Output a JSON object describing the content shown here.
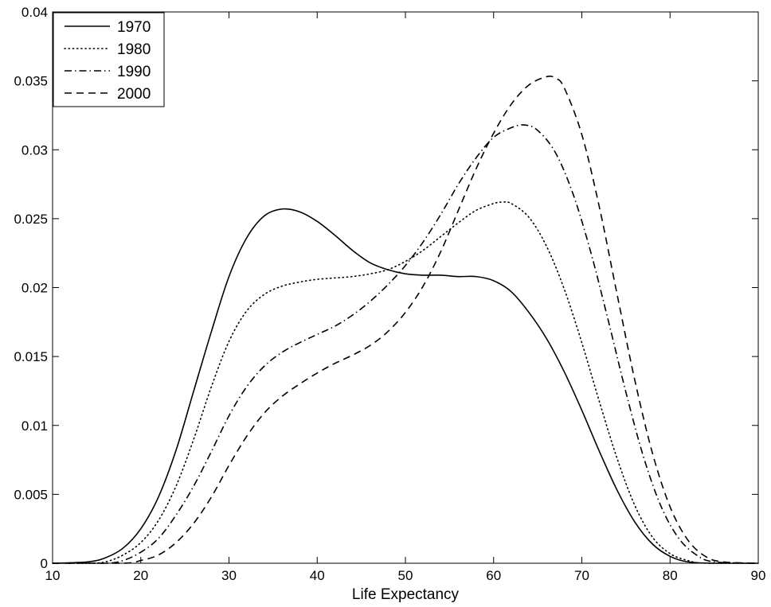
{
  "chart_data": {
    "type": "line",
    "title": "",
    "xlabel": "Life Expectancy",
    "ylabel": "",
    "xlim": [
      10,
      90
    ],
    "ylim": [
      0,
      0.04
    ],
    "x_ticks": [
      "10",
      "20",
      "30",
      "40",
      "50",
      "60",
      "70",
      "80",
      "90"
    ],
    "y_ticks": [
      "0",
      "0.005",
      "0.01",
      "0.015",
      "0.02",
      "0.025",
      "0.03",
      "0.035",
      "0.04"
    ],
    "grid": false,
    "legend_position": "top-left",
    "series": [
      {
        "name": "1970",
        "style": "solid",
        "x": [
          10,
          14,
          16,
          18,
          20,
          22,
          24,
          26,
          28,
          30,
          32,
          34,
          36,
          38,
          40,
          42,
          44,
          46,
          48,
          50,
          52,
          54,
          56,
          58,
          60,
          62,
          64,
          66,
          68,
          70,
          72,
          74,
          76,
          78,
          80,
          82,
          85,
          90
        ],
        "y": [
          0,
          0.0001,
          0.0004,
          0.0011,
          0.0025,
          0.0048,
          0.0082,
          0.0125,
          0.0168,
          0.0208,
          0.0236,
          0.0252,
          0.0257,
          0.0255,
          0.0248,
          0.0238,
          0.0227,
          0.0218,
          0.0213,
          0.021,
          0.0209,
          0.0209,
          0.0208,
          0.0208,
          0.0205,
          0.0197,
          0.0182,
          0.0163,
          0.0139,
          0.0111,
          0.0081,
          0.0053,
          0.003,
          0.0014,
          0.0005,
          0.0001,
          0,
          0
        ]
      },
      {
        "name": "1980",
        "style": "dotted",
        "x": [
          10,
          14,
          16,
          18,
          20,
          22,
          24,
          26,
          28,
          30,
          32,
          34,
          36,
          38,
          40,
          42,
          44,
          46,
          48,
          50,
          52,
          54,
          56,
          58,
          60,
          61,
          62,
          64,
          66,
          68,
          70,
          72,
          74,
          76,
          78,
          80,
          82,
          84,
          90
        ],
        "y": [
          0,
          0,
          0.0001,
          0.0006,
          0.0015,
          0.0031,
          0.0056,
          0.009,
          0.0128,
          0.0161,
          0.0183,
          0.0195,
          0.0201,
          0.0204,
          0.0206,
          0.0207,
          0.0208,
          0.021,
          0.0213,
          0.0219,
          0.0227,
          0.0237,
          0.0247,
          0.0256,
          0.0261,
          0.0262,
          0.0261,
          0.0251,
          0.023,
          0.0199,
          0.016,
          0.0117,
          0.0076,
          0.0042,
          0.0019,
          0.0007,
          0.0002,
          0,
          0
        ]
      },
      {
        "name": "1990",
        "style": "dashdot",
        "x": [
          10,
          16,
          18,
          20,
          22,
          24,
          26,
          28,
          30,
          32,
          34,
          36,
          38,
          40,
          42,
          44,
          46,
          48,
          50,
          52,
          54,
          56,
          58,
          60,
          62,
          63.5,
          65,
          67,
          69,
          71,
          73,
          75,
          77,
          79,
          81,
          83,
          85,
          90
        ],
        "y": [
          0,
          0,
          0.0002,
          0.0008,
          0.0018,
          0.0035,
          0.0056,
          0.0081,
          0.0107,
          0.0128,
          0.0143,
          0.0153,
          0.016,
          0.0166,
          0.0172,
          0.018,
          0.019,
          0.0202,
          0.0216,
          0.0233,
          0.0253,
          0.0275,
          0.0294,
          0.0309,
          0.0316,
          0.0318,
          0.0314,
          0.0298,
          0.0268,
          0.0226,
          0.0176,
          0.0124,
          0.0077,
          0.0041,
          0.0018,
          0.0006,
          0.0001,
          0
        ]
      },
      {
        "name": "2000",
        "style": "dashed",
        "x": [
          10,
          18,
          20,
          22,
          24,
          26,
          28,
          30,
          32,
          34,
          36,
          38,
          40,
          42,
          44,
          46,
          48,
          50,
          52,
          54,
          56,
          58,
          60,
          62,
          64,
          66,
          67,
          68,
          70,
          72,
          74,
          76,
          78,
          80,
          82,
          84,
          86,
          90
        ],
        "y": [
          0,
          0,
          0.0002,
          0.0006,
          0.0015,
          0.0029,
          0.0048,
          0.0071,
          0.0092,
          0.0109,
          0.0121,
          0.013,
          0.0138,
          0.0145,
          0.0151,
          0.0158,
          0.0168,
          0.0182,
          0.0201,
          0.0226,
          0.0256,
          0.0286,
          0.0312,
          0.0333,
          0.0347,
          0.0353,
          0.0352,
          0.0345,
          0.0311,
          0.0258,
          0.0195,
          0.0133,
          0.008,
          0.0041,
          0.0017,
          0.0005,
          0.0001,
          0
        ]
      }
    ]
  }
}
